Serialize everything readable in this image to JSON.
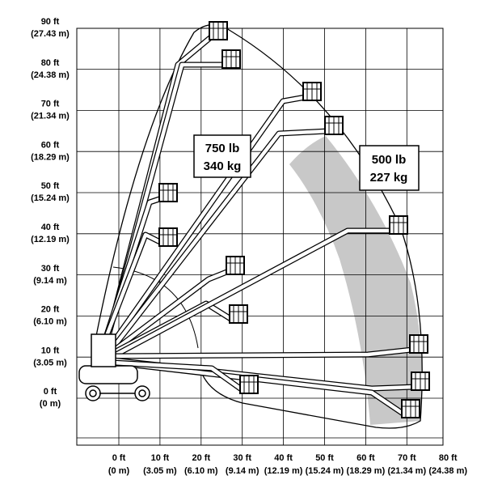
{
  "y_axis": [
    {
      "ft": "90 ft",
      "m": "(27.43 m)"
    },
    {
      "ft": "80 ft",
      "m": "(24.38 m)"
    },
    {
      "ft": "70 ft",
      "m": "(21.34 m)"
    },
    {
      "ft": "60 ft",
      "m": "(18.29 m)"
    },
    {
      "ft": "50 ft",
      "m": "(15.24 m)"
    },
    {
      "ft": "40 ft",
      "m": "(12.19 m)"
    },
    {
      "ft": "30 ft",
      "m": "(9.14 m)"
    },
    {
      "ft": "20 ft",
      "m": "(6.10 m)"
    },
    {
      "ft": "10 ft",
      "m": "(3.05 m)"
    },
    {
      "ft": "0 ft",
      "m": "(0 m)"
    }
  ],
  "x_axis": [
    {
      "ft": "0 ft",
      "m": "(0 m)"
    },
    {
      "ft": "10 ft",
      "m": "(3.05 m)"
    },
    {
      "ft": "20 ft",
      "m": "(6.10 m)"
    },
    {
      "ft": "30 ft",
      "m": "(9.14 m)"
    },
    {
      "ft": "40 ft",
      "m": "(12.19 m)"
    },
    {
      "ft": "50 ft",
      "m": "(15.24 m)"
    },
    {
      "ft": "60 ft",
      "m": "(18.29 m)"
    },
    {
      "ft": "70 ft",
      "m": "(21.34 m)"
    },
    {
      "ft": "80 ft",
      "m": "(24.38 m)"
    }
  ],
  "loads": [
    {
      "lb": "750 lb",
      "kg": "340 kg"
    },
    {
      "lb": "500 lb",
      "kg": "227 kg"
    }
  ]
}
